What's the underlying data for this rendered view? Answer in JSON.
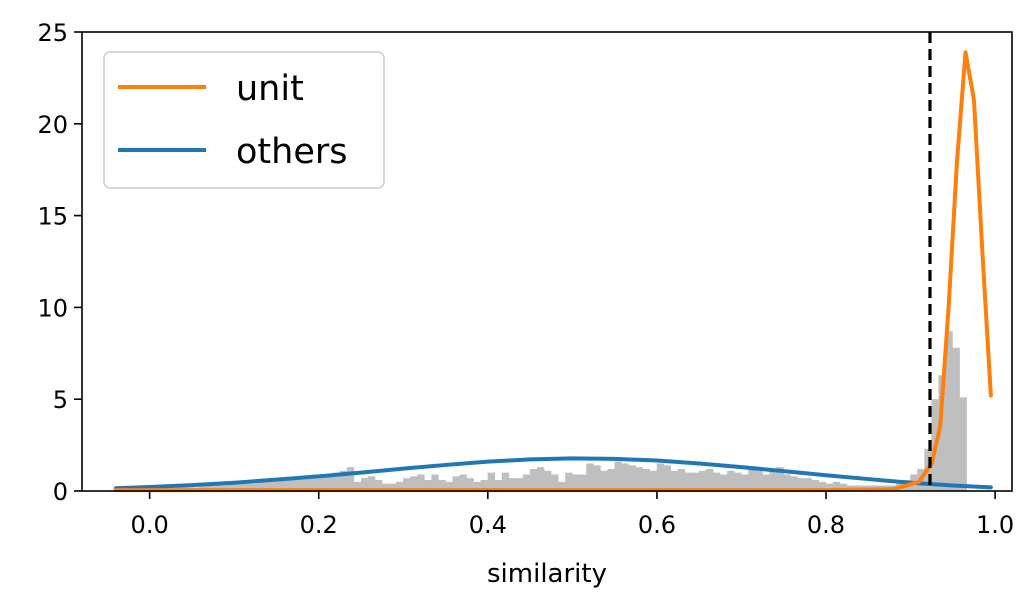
{
  "chart_data": {
    "type": "line",
    "title": "",
    "xlabel": "similarity",
    "ylabel": "",
    "xlim": [
      -0.08,
      1.02
    ],
    "ylim": [
      0,
      25
    ],
    "xticks": [
      "0.0",
      "0.2",
      "0.4",
      "0.6",
      "0.8",
      "1.0"
    ],
    "yticks": [
      "0",
      "5",
      "10",
      "15",
      "20",
      "25"
    ],
    "threshold_x": 0.923,
    "legend_position": "top-left",
    "colors": {
      "unit": "#ff7f0e",
      "others": "#1f77b4",
      "histogram": "#bfbfbf",
      "threshold": "#000000"
    },
    "series": [
      {
        "name": "unit",
        "x": [
          -0.04,
          0.1,
          0.2,
          0.3,
          0.4,
          0.5,
          0.6,
          0.7,
          0.8,
          0.88,
          0.91,
          0.925,
          0.935,
          0.945,
          0.955,
          0.965,
          0.975,
          0.985,
          0.995
        ],
        "y": [
          0.05,
          0.05,
          0.05,
          0.05,
          0.05,
          0.05,
          0.05,
          0.05,
          0.05,
          0.1,
          0.5,
          1.5,
          3.5,
          10.0,
          18.0,
          23.9,
          21.3,
          13.0,
          5.2
        ]
      },
      {
        "name": "others",
        "x": [
          -0.04,
          0.0,
          0.05,
          0.1,
          0.15,
          0.2,
          0.25,
          0.3,
          0.35,
          0.4,
          0.45,
          0.5,
          0.55,
          0.6,
          0.65,
          0.7,
          0.75,
          0.8,
          0.85,
          0.9,
          0.95,
          0.995
        ],
        "y": [
          0.15,
          0.22,
          0.32,
          0.45,
          0.62,
          0.8,
          1.0,
          1.22,
          1.42,
          1.6,
          1.72,
          1.78,
          1.75,
          1.66,
          1.5,
          1.3,
          1.08,
          0.86,
          0.65,
          0.45,
          0.3,
          0.2
        ]
      }
    ],
    "histogram": {
      "bin_start": 0.0,
      "bin_width": 0.00833,
      "counts": [
        0.1,
        0.1,
        0.1,
        0.1,
        0.2,
        0.2,
        0.2,
        0.3,
        0.3,
        0.3,
        0.3,
        0.4,
        0.4,
        0.4,
        0.4,
        0.5,
        0.5,
        0.5,
        0.6,
        0.6,
        0.6,
        0.7,
        0.8,
        0.9,
        0.9,
        0.8,
        1.0,
        1.1,
        1.3,
        0.5,
        0.7,
        0.8,
        0.6,
        0.4,
        0.4,
        0.5,
        0.7,
        0.8,
        0.9,
        0.6,
        0.9,
        0.6,
        0.5,
        0.8,
        0.9,
        0.7,
        0.5,
        0.6,
        1.0,
        0.6,
        1.0,
        0.7,
        0.7,
        0.9,
        1.2,
        1.3,
        1.1,
        0.9,
        0.5,
        1.0,
        0.9,
        0.9,
        1.5,
        1.4,
        1.1,
        1.2,
        1.6,
        1.5,
        1.4,
        1.3,
        1.2,
        1.1,
        1.5,
        1.4,
        1.1,
        1.2,
        1.0,
        1.0,
        1.1,
        1.2,
        1.0,
        0.9,
        1.1,
        1.0,
        0.9,
        1.2,
        1.1,
        0.9,
        1.1,
        1.3,
        0.9,
        0.8,
        0.7,
        0.7,
        0.6,
        0.5,
        0.4,
        0.5,
        0.4,
        0.3,
        0.3,
        0.3,
        0.3,
        0.3,
        0.3,
        0.3,
        0.4,
        0.6,
        0.9,
        1.2,
        2.3,
        5.0,
        6.3,
        8.7,
        7.8,
        5.1
      ]
    }
  }
}
